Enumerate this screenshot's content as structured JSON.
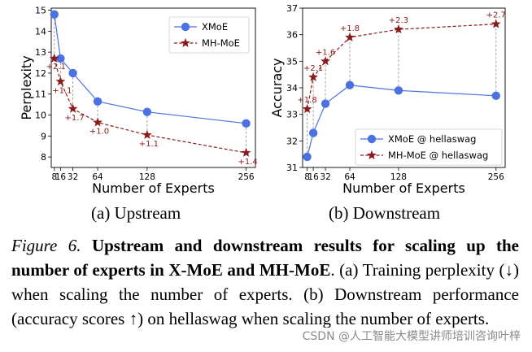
{
  "chart_data": [
    {
      "type": "line",
      "xlabel": "Number of Experts",
      "ylabel": "Perplexity",
      "x": [
        8,
        16,
        32,
        64,
        128,
        256
      ],
      "x_ticks": [
        8,
        16,
        32,
        64,
        128,
        256
      ],
      "y_ticks": [
        8,
        9,
        10,
        11,
        12,
        13,
        14,
        15
      ],
      "ylim": [
        7.5,
        15.1
      ],
      "legend_position": "top-right",
      "series": [
        {
          "name": "XMoE",
          "color": "#4a72e3",
          "marker": "circle",
          "linestyle": "solid",
          "values": [
            14.8,
            12.7,
            12.0,
            10.65,
            10.15,
            9.6
          ]
        },
        {
          "name": "MH-MoE",
          "color": "#8b1a1a",
          "marker": "star",
          "linestyle": "dashed",
          "values": [
            12.7,
            11.6,
            10.3,
            9.65,
            9.05,
            8.2
          ]
        }
      ],
      "annotations": [
        "+2.1",
        "+1.1",
        "+1.7",
        "+1.0",
        "+1.1",
        "+1.4"
      ],
      "annotation_placement": [
        "left",
        "below",
        "below",
        "below",
        "below",
        "below"
      ]
    },
    {
      "type": "line",
      "xlabel": "Number of Experts",
      "ylabel": "Accuracy",
      "x": [
        8,
        16,
        32,
        64,
        128,
        256
      ],
      "x_ticks": [
        8,
        16,
        32,
        64,
        128,
        256
      ],
      "y_ticks": [
        31,
        32,
        33,
        34,
        35,
        36,
        37
      ],
      "ylim": [
        31,
        37
      ],
      "legend_position": "bottom-right",
      "series": [
        {
          "name": "XMoE @ hellaswag",
          "color": "#4a72e3",
          "marker": "circle",
          "linestyle": "solid",
          "values": [
            31.4,
            32.3,
            33.4,
            34.1,
            33.9,
            33.7
          ]
        },
        {
          "name": "MH-MoE @ hellaswag",
          "color": "#8b1a1a",
          "marker": "star",
          "linestyle": "dashed",
          "values": [
            33.2,
            34.4,
            35.0,
            35.9,
            36.2,
            36.4
          ]
        }
      ],
      "annotations": [
        "+1.8",
        "+2.1",
        "+1.6",
        "+1.8",
        "+2.3",
        "+2.7"
      ],
      "annotation_placement": [
        "above",
        "above",
        "above",
        "above",
        "above",
        "above"
      ]
    }
  ],
  "subcaptions": {
    "a": "(a) Upstream",
    "b": "(b) Downstream"
  },
  "caption": {
    "figure_label": "Figure 6.",
    "bold_text": "Upstream and downstream results for scaling up the number of experts in X-MoE and MH-MoE",
    "body_text": ". (a) Training perplexity (↓) when scaling the number of experts. (b) Downstream performance (accuracy scores ↑) on hellaswag when scaling the number of experts."
  },
  "watermark": "CSDN @人工智能大模型讲师培训咨询叶梓"
}
